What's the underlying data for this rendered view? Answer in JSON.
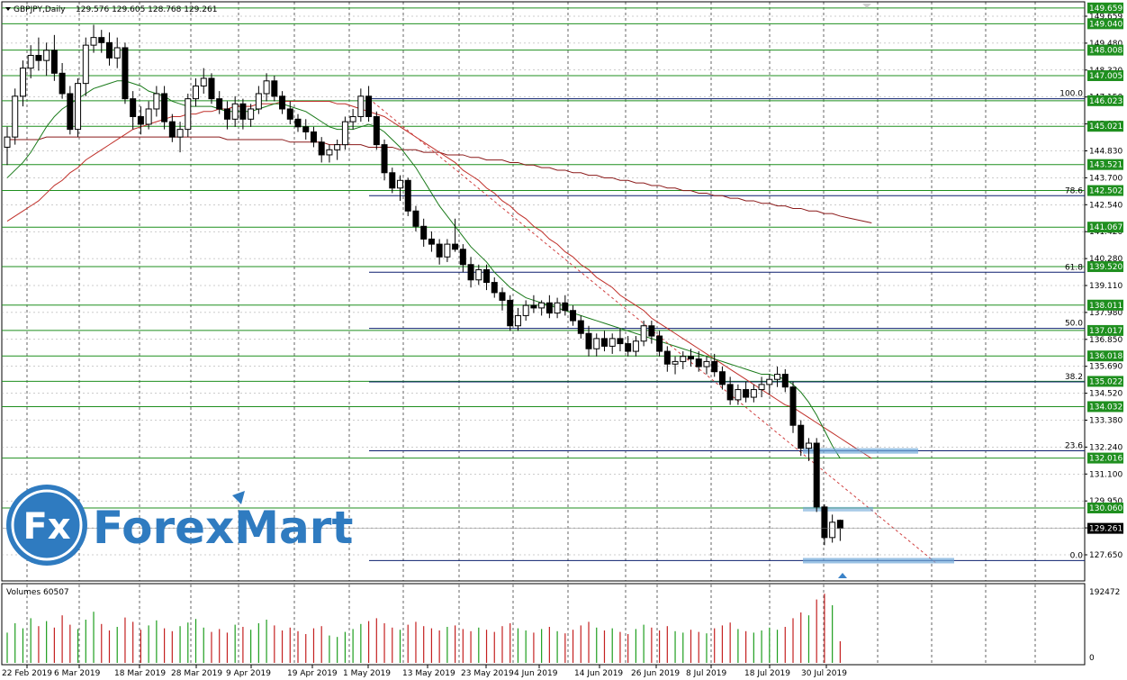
{
  "header": {
    "symbol": "GBPJPY,Daily",
    "ohlc": "129.576 129.605 128.768 129.261"
  },
  "volume_header": "Volumes 60507",
  "watermark": "ForexMart",
  "colors": {
    "bull": "#ffffff",
    "bear": "#000000",
    "ma_short": "#1a7a1a",
    "ma_mid": "#c0302a",
    "ma_long": "#8b1a1a",
    "level_green": "#1f8f1f",
    "fib_navy": "#0b1f6e",
    "trend_red": "#d04040",
    "highlight": "#6fa8d8",
    "bid_label_bg": "#000000",
    "vol_up": "#1e9e1e",
    "vol_down": "#c42020"
  },
  "chart_data": {
    "type": "candlestick",
    "symbol": "GBPJPY",
    "timeframe": "Daily",
    "ylim": [
      127.2,
      149.9
    ],
    "x_axis_labels": [
      "22 Feb 2019",
      "6 Mar 2019",
      "18 Mar 2019",
      "28 Mar 2019",
      "9 Apr 2019",
      "19 Apr 2019",
      "1 May 2019",
      "13 May 2019",
      "23 May 2019",
      "4 Jun 2019",
      "14 Jun 2019",
      "26 Jun 2019",
      "8 Jul 2019",
      "18 Jul 2019",
      "30 Jul 2019"
    ],
    "price_axis_labels": [
      "149.659",
      "149.480",
      "148.320",
      "147.150",
      "145.990",
      "144.830",
      "143.700",
      "142.540",
      "141.420",
      "140.280",
      "139.110",
      "137.980",
      "136.850",
      "135.690",
      "134.520",
      "133.380",
      "132.240",
      "131.100",
      "129.950",
      "128.790",
      "127.650"
    ],
    "horizontal_levels": [
      149.659,
      149.04,
      148.008,
      147.005,
      146.023,
      145.021,
      143.521,
      142.502,
      141.067,
      139.52,
      138.011,
      137.017,
      136.018,
      135.022,
      134.032,
      132.016,
      130.06
    ],
    "level_labels": [
      "149.659",
      "149.040",
      "148.008",
      "147.005",
      "146.023",
      "145.021",
      "143.521",
      "142.502",
      "141.067",
      "139.520",
      "138.011",
      "137.017",
      "136.018",
      "135.022",
      "134.032",
      "132.016",
      "130.060"
    ],
    "fibonacci": [
      {
        "label": "100.0",
        "price": 146.1
      },
      {
        "label": "78.6",
        "price": 142.3
      },
      {
        "label": "61.8",
        "price": 139.3
      },
      {
        "label": "50.0",
        "price": 137.1
      },
      {
        "label": "38.2",
        "price": 135.0
      },
      {
        "label": "23.6",
        "price": 132.3
      },
      {
        "label": "0.0",
        "price": 128.0
      }
    ],
    "current_price": "129.261",
    "current_price_value": 129.261,
    "ohlc": [
      [
        144.2,
        145.0,
        143.5,
        144.6
      ],
      [
        144.6,
        146.5,
        144.3,
        146.2
      ],
      [
        146.2,
        147.6,
        145.8,
        147.3
      ],
      [
        147.3,
        148.2,
        146.9,
        147.8
      ],
      [
        147.8,
        148.5,
        147.2,
        147.6
      ],
      [
        147.6,
        148.3,
        147.0,
        148.0
      ],
      [
        148.0,
        148.6,
        146.8,
        147.1
      ],
      [
        147.1,
        147.5,
        146.1,
        146.3
      ],
      [
        146.3,
        146.6,
        144.7,
        144.9
      ],
      [
        144.9,
        146.9,
        144.6,
        146.7
      ],
      [
        146.7,
        148.5,
        146.2,
        148.2
      ],
      [
        148.2,
        149.0,
        147.9,
        148.5
      ],
      [
        148.5,
        148.8,
        147.9,
        148.3
      ],
      [
        148.3,
        148.7,
        147.4,
        147.7
      ],
      [
        147.7,
        148.5,
        147.3,
        148.1
      ],
      [
        148.1,
        148.3,
        145.9,
        146.1
      ],
      [
        146.1,
        146.4,
        144.9,
        145.4
      ],
      [
        145.4,
        145.8,
        144.7,
        145.1
      ],
      [
        145.1,
        146.0,
        144.9,
        145.7
      ],
      [
        145.7,
        146.6,
        145.4,
        146.3
      ],
      [
        146.3,
        146.6,
        144.9,
        145.2
      ],
      [
        145.2,
        145.5,
        144.4,
        144.6
      ],
      [
        144.6,
        145.2,
        144.0,
        144.9
      ],
      [
        144.9,
        146.3,
        144.6,
        146.1
      ],
      [
        146.1,
        146.9,
        145.8,
        146.6
      ],
      [
        146.6,
        147.3,
        146.3,
        146.9
      ],
      [
        146.9,
        147.1,
        145.9,
        146.1
      ],
      [
        146.1,
        146.4,
        145.5,
        145.7
      ],
      [
        145.7,
        146.0,
        144.9,
        145.3
      ],
      [
        145.3,
        146.2,
        145.0,
        145.9
      ],
      [
        145.9,
        146.1,
        144.9,
        145.3
      ],
      [
        145.3,
        145.9,
        145.0,
        145.7
      ],
      [
        145.7,
        146.6,
        145.5,
        146.3
      ],
      [
        146.3,
        147.1,
        146.0,
        146.8
      ],
      [
        146.8,
        147.0,
        146.0,
        146.2
      ],
      [
        146.2,
        146.4,
        145.5,
        145.7
      ],
      [
        145.7,
        146.0,
        145.1,
        145.3
      ],
      [
        145.3,
        145.5,
        144.8,
        145.0
      ],
      [
        145.0,
        145.3,
        144.5,
        144.8
      ],
      [
        144.8,
        145.0,
        144.2,
        144.4
      ],
      [
        144.4,
        144.6,
        143.6,
        143.9
      ],
      [
        143.9,
        144.3,
        143.6,
        144.1
      ],
      [
        144.1,
        144.5,
        143.7,
        144.3
      ],
      [
        144.3,
        145.4,
        144.1,
        145.2
      ],
      [
        145.2,
        145.7,
        144.9,
        145.4
      ],
      [
        145.4,
        146.5,
        145.2,
        146.2
      ],
      [
        146.2,
        146.6,
        145.2,
        145.4
      ],
      [
        145.4,
        145.6,
        144.1,
        144.3
      ],
      [
        144.3,
        144.5,
        142.9,
        143.2
      ],
      [
        143.2,
        143.4,
        142.4,
        142.6
      ],
      [
        142.6,
        143.1,
        142.1,
        142.9
      ],
      [
        142.9,
        143.0,
        141.5,
        141.7
      ],
      [
        141.7,
        141.9,
        140.9,
        141.1
      ],
      [
        141.1,
        141.4,
        140.3,
        140.6
      ],
      [
        140.6,
        140.9,
        140.1,
        140.4
      ],
      [
        140.4,
        140.6,
        139.6,
        139.9
      ],
      [
        139.9,
        140.6,
        139.7,
        140.4
      ],
      [
        140.4,
        141.4,
        140.1,
        140.2
      ],
      [
        140.2,
        140.4,
        139.3,
        139.6
      ],
      [
        139.6,
        139.9,
        138.7,
        139.0
      ],
      [
        139.0,
        139.6,
        138.8,
        139.4
      ],
      [
        139.4,
        139.6,
        138.6,
        138.9
      ],
      [
        138.9,
        139.1,
        138.3,
        138.5
      ],
      [
        138.5,
        138.7,
        137.8,
        138.2
      ],
      [
        138.2,
        138.4,
        137.0,
        137.2
      ],
      [
        137.2,
        137.9,
        137.0,
        137.6
      ],
      [
        137.6,
        138.2,
        137.4,
        138.0
      ],
      [
        138.0,
        138.4,
        137.7,
        137.9
      ],
      [
        137.9,
        138.2,
        137.6,
        138.1
      ],
      [
        138.1,
        138.4,
        137.5,
        137.7
      ],
      [
        137.7,
        138.3,
        137.5,
        138.1
      ],
      [
        138.1,
        138.4,
        137.6,
        137.8
      ],
      [
        137.8,
        138.0,
        137.2,
        137.4
      ],
      [
        137.4,
        137.6,
        136.7,
        136.9
      ],
      [
        136.9,
        137.2,
        136.0,
        136.3
      ],
      [
        136.3,
        136.9,
        136.0,
        136.7
      ],
      [
        136.7,
        137.0,
        136.2,
        136.4
      ],
      [
        136.4,
        136.9,
        136.1,
        136.7
      ],
      [
        136.7,
        137.1,
        136.2,
        136.5
      ],
      [
        136.5,
        136.8,
        136.0,
        136.2
      ],
      [
        136.2,
        136.8,
        136.0,
        136.6
      ],
      [
        136.6,
        137.4,
        136.4,
        137.2
      ],
      [
        137.2,
        137.4,
        136.5,
        136.8
      ],
      [
        136.8,
        137.0,
        136.0,
        136.2
      ],
      [
        136.2,
        136.4,
        135.4,
        135.7
      ],
      [
        135.7,
        136.0,
        135.3,
        135.8
      ],
      [
        135.8,
        136.2,
        135.5,
        136.0
      ],
      [
        136.0,
        136.3,
        135.6,
        135.9
      ],
      [
        135.9,
        136.2,
        135.4,
        135.6
      ],
      [
        135.6,
        136.0,
        135.3,
        135.8
      ],
      [
        135.8,
        136.1,
        135.2,
        135.4
      ],
      [
        135.4,
        135.6,
        134.7,
        134.9
      ],
      [
        134.9,
        135.2,
        134.1,
        134.3
      ],
      [
        134.3,
        134.9,
        134.1,
        134.7
      ],
      [
        134.7,
        135.0,
        134.2,
        134.4
      ],
      [
        134.4,
        134.9,
        134.2,
        134.7
      ],
      [
        134.7,
        135.2,
        134.4,
        134.9
      ],
      [
        134.9,
        135.3,
        134.5,
        135.1
      ],
      [
        135.1,
        135.6,
        134.8,
        135.3
      ],
      [
        135.3,
        135.5,
        134.6,
        134.8
      ],
      [
        134.8,
        135.0,
        133.0,
        133.3
      ],
      [
        133.3,
        133.5,
        132.1,
        132.4
      ],
      [
        132.4,
        132.8,
        131.9,
        132.6
      ],
      [
        132.6,
        132.8,
        129.9,
        130.1
      ],
      [
        130.1,
        130.2,
        128.6,
        128.9
      ],
      [
        128.9,
        129.8,
        128.7,
        129.5
      ],
      [
        129.576,
        129.605,
        128.768,
        129.261
      ]
    ],
    "volumes": [
      0.42,
      0.55,
      0.48,
      0.62,
      0.51,
      0.58,
      0.49,
      0.66,
      0.53,
      0.47,
      0.6,
      0.71,
      0.54,
      0.45,
      0.5,
      0.63,
      0.57,
      0.46,
      0.52,
      0.59,
      0.48,
      0.44,
      0.51,
      0.56,
      0.61,
      0.49,
      0.43,
      0.47,
      0.42,
      0.53,
      0.5,
      0.46,
      0.55,
      0.6,
      0.52,
      0.45,
      0.49,
      0.44,
      0.4,
      0.48,
      0.51,
      0.38,
      0.36,
      0.43,
      0.47,
      0.54,
      0.58,
      0.62,
      0.55,
      0.49,
      0.46,
      0.53,
      0.57,
      0.51,
      0.48,
      0.45,
      0.5,
      0.52,
      0.47,
      0.44,
      0.49,
      0.46,
      0.43,
      0.51,
      0.55,
      0.48,
      0.45,
      0.42,
      0.47,
      0.5,
      0.44,
      0.41,
      0.46,
      0.52,
      0.57,
      0.49,
      0.45,
      0.48,
      0.43,
      0.4,
      0.47,
      0.53,
      0.49,
      0.45,
      0.51,
      0.44,
      0.42,
      0.46,
      0.43,
      0.41,
      0.48,
      0.52,
      0.56,
      0.47,
      0.44,
      0.42,
      0.45,
      0.49,
      0.46,
      0.5,
      0.62,
      0.7,
      0.66,
      0.88,
      0.96,
      0.8,
      0.3
    ],
    "sma_short": [
      143.0,
      143.3,
      143.6,
      144.0,
      144.5,
      145.0,
      145.4,
      145.7,
      145.9,
      146.1,
      146.3,
      146.5,
      146.6,
      146.7,
      146.8,
      146.8,
      146.7,
      146.6,
      146.4,
      146.3,
      146.2,
      146.0,
      145.9,
      145.8,
      145.8,
      145.8,
      145.8,
      145.7,
      145.6,
      145.6,
      145.6,
      145.6,
      145.7,
      145.8,
      145.9,
      145.9,
      145.8,
      145.7,
      145.6,
      145.4,
      145.2,
      145.0,
      144.9,
      144.9,
      144.9,
      145.0,
      145.1,
      145.0,
      144.8,
      144.5,
      144.2,
      143.8,
      143.4,
      142.9,
      142.4,
      141.9,
      141.5,
      141.1,
      140.7,
      140.3,
      140.0,
      139.7,
      139.3,
      139.0,
      138.7,
      138.5,
      138.3,
      138.2,
      138.1,
      138.0,
      137.9,
      137.8,
      137.7,
      137.6,
      137.5,
      137.4,
      137.3,
      137.2,
      137.1,
      137.0,
      136.9,
      136.8,
      136.7,
      136.6,
      136.5,
      136.4,
      136.3,
      136.2,
      136.1,
      136.0,
      135.9,
      135.8,
      135.7,
      135.6,
      135.5,
      135.4,
      135.3,
      135.3,
      135.2,
      135.1,
      134.9,
      134.6,
      134.2,
      133.7,
      133.1,
      132.5,
      132.0
    ],
    "sma_mid": [
      141.3,
      141.5,
      141.7,
      141.9,
      142.1,
      142.4,
      142.7,
      142.9,
      143.2,
      143.4,
      143.7,
      143.9,
      144.1,
      144.3,
      144.5,
      144.7,
      144.9,
      145.0,
      145.1,
      145.2,
      145.3,
      145.4,
      145.4,
      145.5,
      145.5,
      145.6,
      145.6,
      145.7,
      145.7,
      145.8,
      145.8,
      145.8,
      145.9,
      145.9,
      145.9,
      146.0,
      146.0,
      146.0,
      146.0,
      146.0,
      146.0,
      146.0,
      145.9,
      145.9,
      145.8,
      145.7,
      145.6,
      145.5,
      145.4,
      145.2,
      145.0,
      144.8,
      144.6,
      144.4,
      144.2,
      144.0,
      143.8,
      143.6,
      143.3,
      143.1,
      142.9,
      142.6,
      142.4,
      142.1,
      141.9,
      141.6,
      141.4,
      141.1,
      140.9,
      140.6,
      140.4,
      140.1,
      139.9,
      139.6,
      139.4,
      139.1,
      138.9,
      138.7,
      138.4,
      138.2,
      138.0,
      137.8,
      137.5,
      137.3,
      137.1,
      136.9,
      136.7,
      136.5,
      136.3,
      136.1,
      135.9,
      135.7,
      135.5,
      135.3,
      135.1,
      134.9,
      134.7,
      134.5,
      134.3,
      134.1,
      134.0,
      133.8,
      133.6,
      133.4,
      133.2,
      133.0,
      132.8
    ],
    "sma_long": [
      144.5,
      144.5,
      144.5,
      144.5,
      144.5,
      144.6,
      144.6,
      144.6,
      144.6,
      144.6,
      144.6,
      144.6,
      144.6,
      144.6,
      144.6,
      144.6,
      144.6,
      144.6,
      144.6,
      144.6,
      144.6,
      144.6,
      144.6,
      144.6,
      144.6,
      144.6,
      144.6,
      144.6,
      144.5,
      144.5,
      144.5,
      144.5,
      144.5,
      144.5,
      144.5,
      144.5,
      144.4,
      144.4,
      144.4,
      144.4,
      144.4,
      144.3,
      144.3,
      144.3,
      144.3,
      144.3,
      144.2,
      144.2,
      144.2,
      144.2,
      144.1,
      144.1,
      144.1,
      144.0,
      144.0,
      144.0,
      143.9,
      143.9,
      143.9,
      143.8,
      143.8,
      143.7,
      143.7,
      143.7,
      143.6,
      143.6,
      143.5,
      143.5,
      143.4,
      143.4,
      143.3,
      143.3,
      143.2,
      143.2,
      143.1,
      143.1,
      143.0,
      143.0,
      142.9,
      142.9,
      142.8,
      142.8,
      142.7,
      142.7,
      142.6,
      142.6,
      142.5,
      142.5,
      142.4,
      142.4,
      142.3,
      142.3,
      142.2,
      142.2,
      142.1,
      142.1,
      142.0,
      142.0,
      141.9,
      141.9,
      141.8,
      141.8,
      141.7,
      141.7,
      141.6,
      141.6,
      141.5
    ]
  }
}
